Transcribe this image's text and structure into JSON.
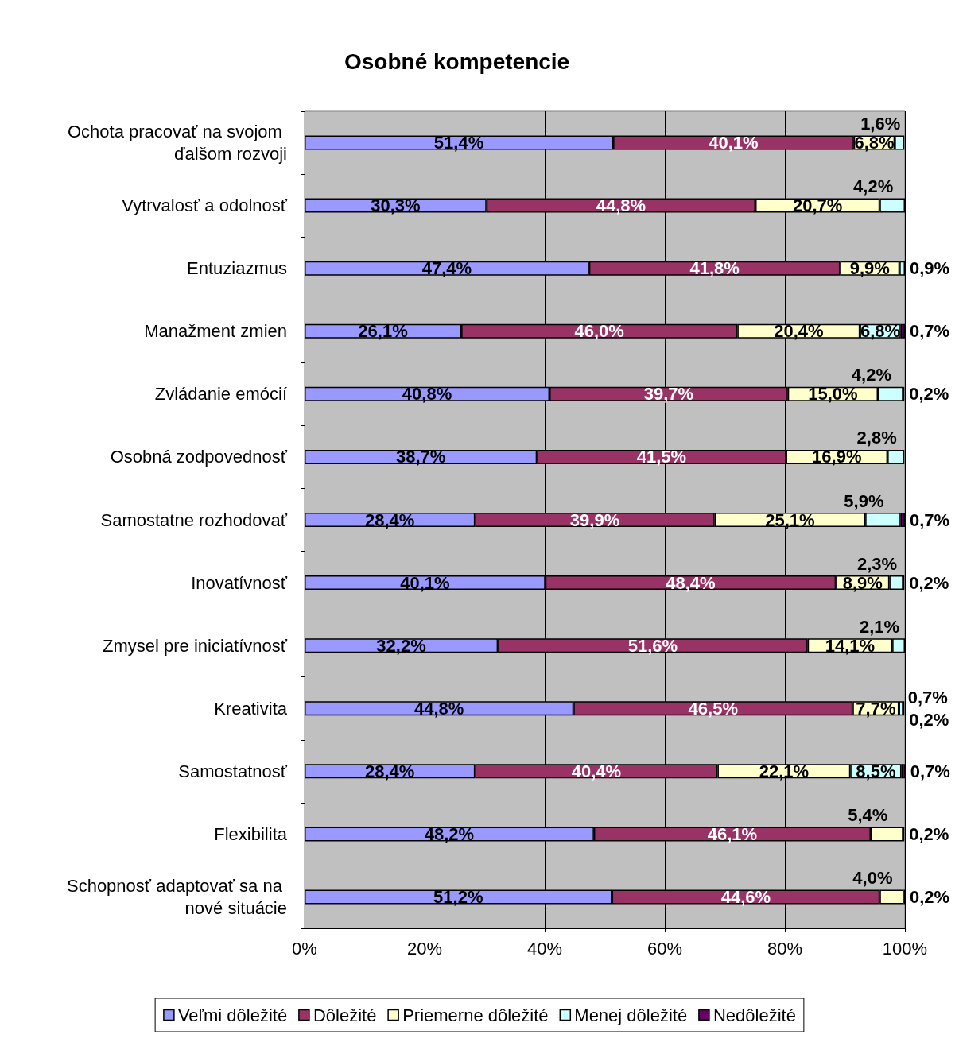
{
  "chart_data": {
    "type": "bar",
    "title": "Osobné kompetencie",
    "orientation": "horizontal",
    "stacked": true,
    "categories": [
      "Ochota pracovať na svojom ďalšom rozvoji",
      "Vytrvalosť a odolnosť",
      "Entuziazmus",
      "Manažment zmien",
      "Zvládanie emócií",
      "Osobná zodpovednosť",
      "Samostatne rozhodovať",
      "Inovatívnosť",
      "Zmysel pre iniciatívnosť",
      "Kreativita",
      "Samostatnosť",
      "Flexibilita",
      "Schopnosť adaptovať sa na nové situácie"
    ],
    "series": [
      {
        "name": "Veľmi dôležité",
        "color": "#9999ff",
        "values": [
          51.4,
          30.3,
          47.4,
          26.1,
          40.8,
          38.7,
          28.4,
          40.1,
          32.2,
          44.8,
          28.4,
          48.2,
          51.2
        ],
        "value_labels": [
          "51,4%",
          "30,3%",
          "47,4%",
          "26,1%",
          "40,8%",
          "38,7%",
          "28,4%",
          "40,1%",
          "32,2%",
          "44,8%",
          "28,4%",
          "48,2%",
          "51,2%"
        ]
      },
      {
        "name": "Dôležité",
        "color": "#993366",
        "values": [
          40.1,
          44.8,
          41.8,
          46.0,
          39.7,
          41.5,
          39.9,
          48.4,
          51.6,
          46.5,
          40.4,
          46.1,
          44.6
        ],
        "value_labels": [
          "40,1%",
          "44,8%",
          "41,8%",
          "46,0%",
          "39,7%",
          "41,5%",
          "39,9%",
          "48,4%",
          "51,6%",
          "46,5%",
          "40,4%",
          "46,1%",
          "44,6%"
        ]
      },
      {
        "name": "Priemerne dôležité",
        "color": "#ffffcc",
        "values": [
          6.8,
          20.7,
          9.9,
          20.4,
          15.0,
          16.9,
          25.1,
          8.9,
          14.1,
          7.7,
          22.1,
          5.4,
          4.0
        ],
        "value_labels": [
          "6,8%",
          "20,7%",
          "9,9%",
          "20,4%",
          "15,0%",
          "16,9%",
          "25,1%",
          "8,9%",
          "14,1%",
          "7,7%",
          "22,1%",
          "5,4%",
          "4,0%"
        ]
      },
      {
        "name": "Menej dôležité",
        "color": "#ccffff",
        "values": [
          1.6,
          4.2,
          0.9,
          6.8,
          4.2,
          2.8,
          5.9,
          2.3,
          2.1,
          0.7,
          8.5,
          0.2,
          0.2
        ],
        "value_labels": [
          "1,6%",
          "4,2%",
          "0,9%",
          "6,8%",
          "4,2%",
          "2,8%",
          "5,9%",
          "2,3%",
          "2,1%",
          "0,7%",
          "8,5%",
          "0,2%",
          "0,2%"
        ]
      },
      {
        "name": "Nedôležité",
        "color": "#660066",
        "values": [
          null,
          null,
          null,
          0.7,
          0.2,
          null,
          0.7,
          0.2,
          null,
          0.2,
          0.7,
          null,
          null
        ],
        "value_labels": [
          null,
          null,
          null,
          "0,7%",
          "0,2%",
          null,
          "0,7%",
          "0,2%",
          null,
          "0,2%",
          "0,7%",
          null,
          null
        ]
      }
    ],
    "xlim": [
      0,
      100
    ],
    "xticks": [
      {
        "value": 0,
        "label": "0%"
      },
      {
        "value": 20,
        "label": "20%"
      },
      {
        "value": 40,
        "label": "40%"
      },
      {
        "value": 60,
        "label": "60%"
      },
      {
        "value": 80,
        "label": "80%"
      },
      {
        "value": 100,
        "label": "100%"
      }
    ],
    "grid": "x",
    "legend": "bottom"
  }
}
